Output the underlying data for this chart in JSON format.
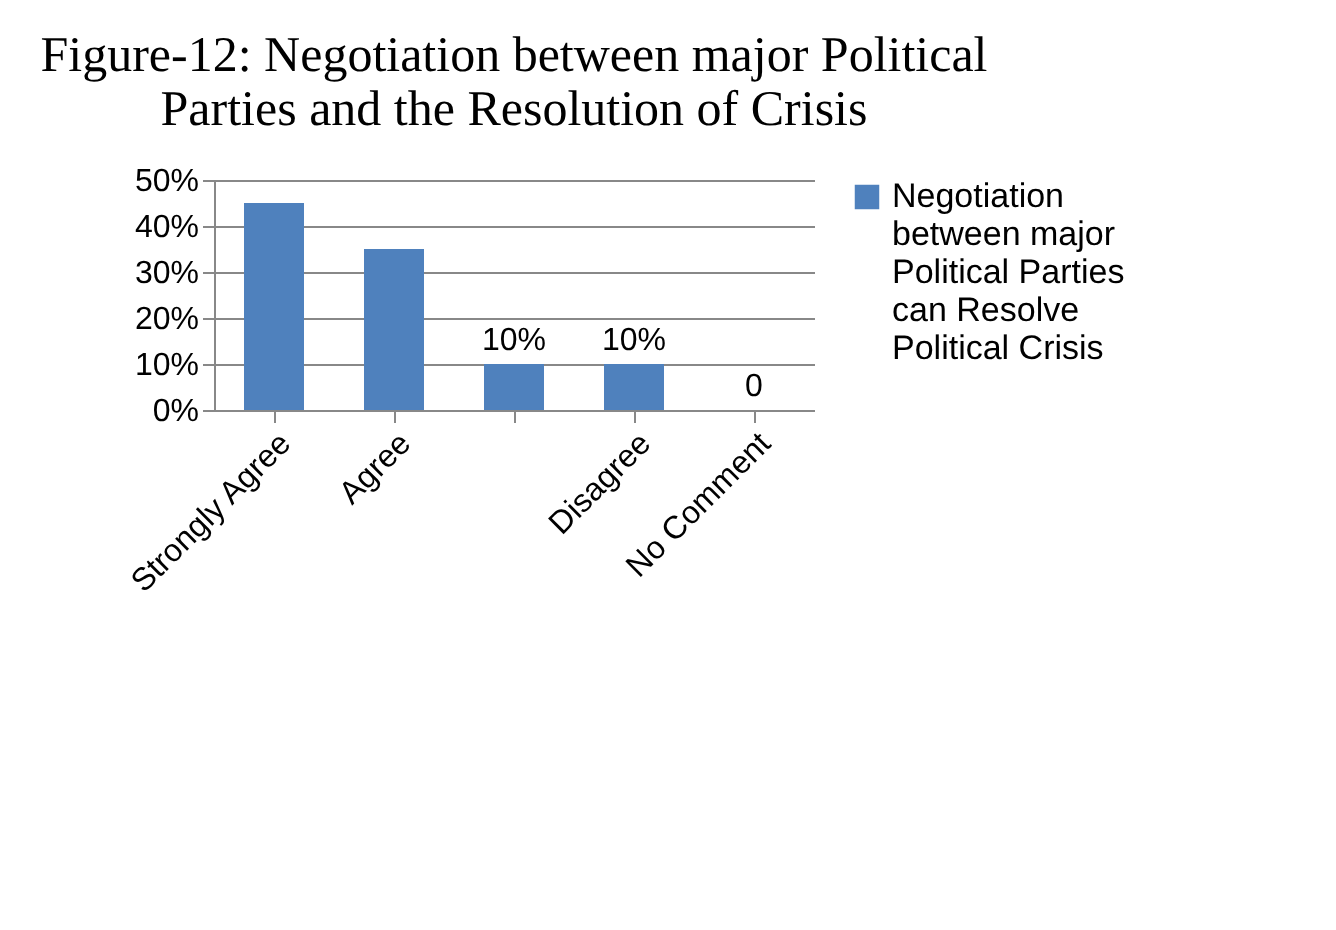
{
  "chart_data": {
    "type": "bar",
    "title": "Figure-12: Negotiation between major Political Parties and the Resolution of Crisis",
    "categories": [
      "Strongly Agree",
      "Agree",
      null,
      "Disagree",
      "No Comment"
    ],
    "series": [
      {
        "name": "Negotiation between major Political Parties can Resolve Political Crisis",
        "color": "#4f81bd",
        "values": [
          45,
          35,
          10,
          10,
          0
        ]
      }
    ],
    "value_labels": [
      null,
      null,
      "10%",
      "10%",
      "0"
    ],
    "ylim": [
      0,
      50
    ],
    "yticks": [
      {
        "value": 0,
        "label": "0%"
      },
      {
        "value": 10,
        "label": "10%"
      },
      {
        "value": 20,
        "label": "20%"
      },
      {
        "value": 30,
        "label": "30%"
      },
      {
        "value": 40,
        "label": "40%"
      },
      {
        "value": 50,
        "label": "50%"
      }
    ],
    "grid": "y",
    "legend": "right"
  }
}
